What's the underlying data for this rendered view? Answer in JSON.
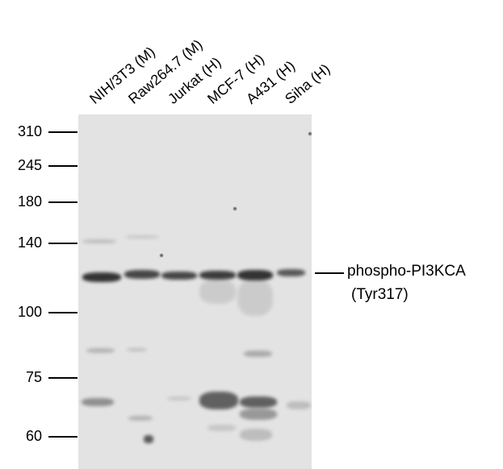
{
  "lanes": [
    {
      "label": "NIH/3T3 (M)"
    },
    {
      "label": "Raw264.7 (M)"
    },
    {
      "label": "Jurkat (H)"
    },
    {
      "label": "MCF-7 (H)"
    },
    {
      "label": "A431 (H)"
    },
    {
      "label": "Siha (H)"
    }
  ],
  "markers": [
    "310",
    "245",
    "180",
    "140",
    "100",
    "75",
    "60"
  ],
  "target": {
    "name": "phospho-PI3KCA",
    "site": "(Tyr317)"
  },
  "colors": {
    "background": "#e3e3e3",
    "band": "#2a2a2a"
  }
}
